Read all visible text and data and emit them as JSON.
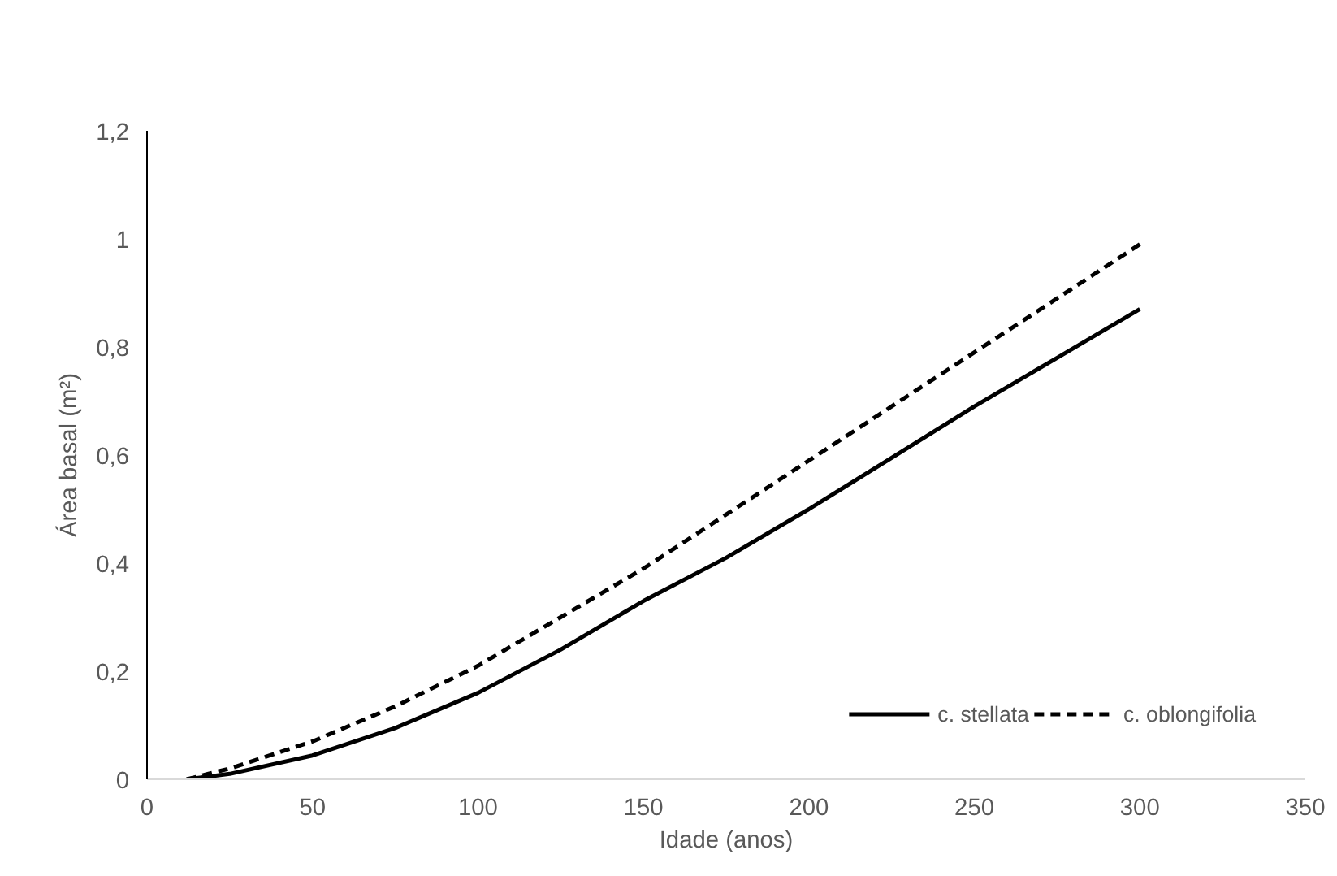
{
  "chart_data": {
    "type": "line",
    "xlabel": "Idade (anos)",
    "ylabel": "Área basal (m²)",
    "x": [
      12,
      25,
      50,
      75,
      100,
      125,
      150,
      175,
      200,
      225,
      250,
      275,
      300
    ],
    "series": [
      {
        "name": "c. stellata",
        "color": "#000000",
        "line_style": "solid",
        "values": [
          0.0,
          0.01,
          0.044,
          0.095,
          0.16,
          0.24,
          0.33,
          0.41,
          0.5,
          0.595,
          0.69,
          0.78,
          0.87
        ]
      },
      {
        "name": "c. oblongifolia",
        "color": "#000000",
        "line_style": "dashed",
        "values": [
          0.0,
          0.02,
          0.07,
          0.135,
          0.21,
          0.3,
          0.39,
          0.49,
          0.59,
          0.69,
          0.79,
          0.89,
          0.99
        ]
      }
    ],
    "xlim": [
      0,
      350
    ],
    "xticks": [
      0,
      50,
      100,
      150,
      200,
      250,
      300,
      350
    ],
    "ylim": [
      0,
      1.2
    ],
    "yticks": [
      0,
      {
        "value": 0.2,
        "label": "0,2"
      },
      {
        "value": 0.4,
        "label": "0,4"
      },
      {
        "value": 0.6,
        "label": "0,6"
      },
      {
        "value": 0.8,
        "label": "0,8"
      },
      1,
      {
        "value": 1.2,
        "label": "1,2"
      }
    ],
    "grid": false,
    "legend": "bottom right",
    "marker": "none"
  }
}
